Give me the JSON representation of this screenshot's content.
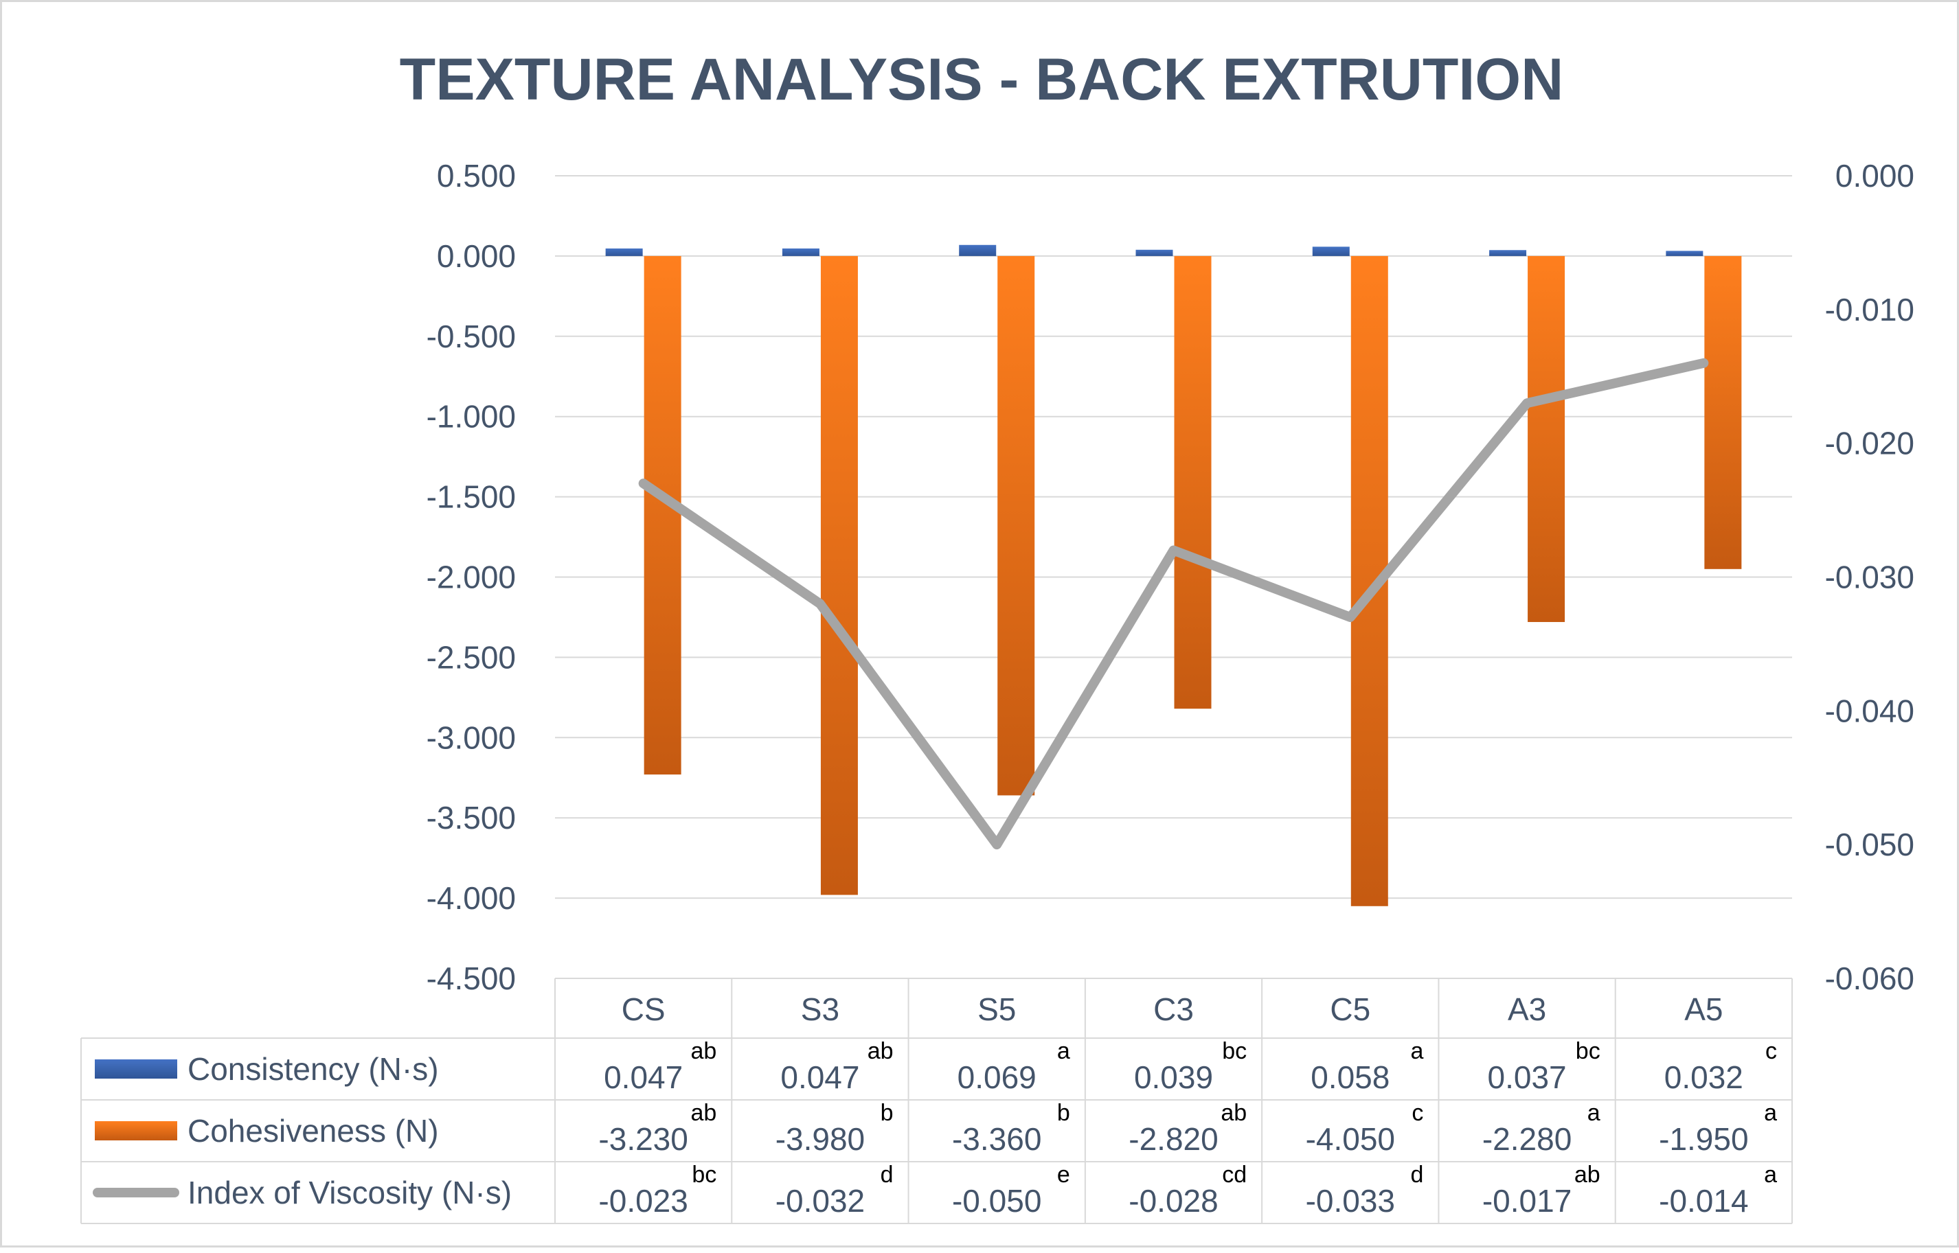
{
  "colors": {
    "title": "#44546A",
    "text": "#44546A",
    "grid": "#D9D9D9",
    "consistency_top": "#4472C4",
    "consistency_bottom": "#2F5597",
    "cohesiveness_top": "#FF7F1E",
    "cohesiveness_bottom": "#C55A11",
    "viscosity": "#A5A5A5"
  },
  "chart_data": {
    "type": "bar",
    "title": "TEXTURE ANALYSIS - BACK EXTRUTION",
    "categories": [
      "CS",
      "S3",
      "S5",
      "C3",
      "C5",
      "A3",
      "A5"
    ],
    "primary_axis": {
      "ylim": [
        -4.5,
        0.5
      ],
      "ticks": [
        "0.500",
        "0.000",
        "-0.500",
        "-1.000",
        "-1.500",
        "-2.000",
        "-2.500",
        "-3.000",
        "-3.500",
        "-4.000",
        "-4.500"
      ]
    },
    "secondary_axis": {
      "ylim": [
        -0.06,
        0.0
      ],
      "ticks": [
        "0.000",
        "-0.010",
        "-0.020",
        "-0.030",
        "-0.040",
        "-0.050",
        "-0.060"
      ]
    },
    "gridlines": true,
    "data_table": true,
    "series": [
      {
        "name": "Consistency (N·s)",
        "type": "bar",
        "axis": "primary",
        "values": [
          0.047,
          0.047,
          0.069,
          0.039,
          0.058,
          0.037,
          0.032
        ],
        "labels": [
          "0.047",
          "0.047",
          "0.069",
          "0.039",
          "0.058",
          "0.037",
          "0.032"
        ],
        "letters": [
          "ab",
          "ab",
          "a",
          "bc",
          "a",
          "bc",
          "c"
        ]
      },
      {
        "name": "Cohesiveness (N)",
        "type": "bar",
        "axis": "primary",
        "values": [
          -3.23,
          -3.98,
          -3.36,
          -2.82,
          -4.05,
          -2.28,
          -1.95
        ],
        "labels": [
          "-3.230",
          "-3.980",
          "-3.360",
          "-2.820",
          "-4.050",
          "-2.280",
          "-1.950"
        ],
        "letters": [
          "ab",
          "b",
          "b",
          "ab",
          "c",
          "a",
          "a"
        ]
      },
      {
        "name": "Index of Viscosity (N·s)",
        "type": "line",
        "axis": "secondary",
        "values": [
          -0.023,
          -0.032,
          -0.05,
          -0.028,
          -0.033,
          -0.017,
          -0.014
        ],
        "labels": [
          "-0.023",
          "-0.032",
          "-0.050",
          "-0.028",
          "-0.033",
          "-0.017",
          "-0.014"
        ],
        "letters": [
          "bc",
          "d",
          "e",
          "cd",
          "d",
          "ab",
          "a"
        ]
      }
    ]
  }
}
